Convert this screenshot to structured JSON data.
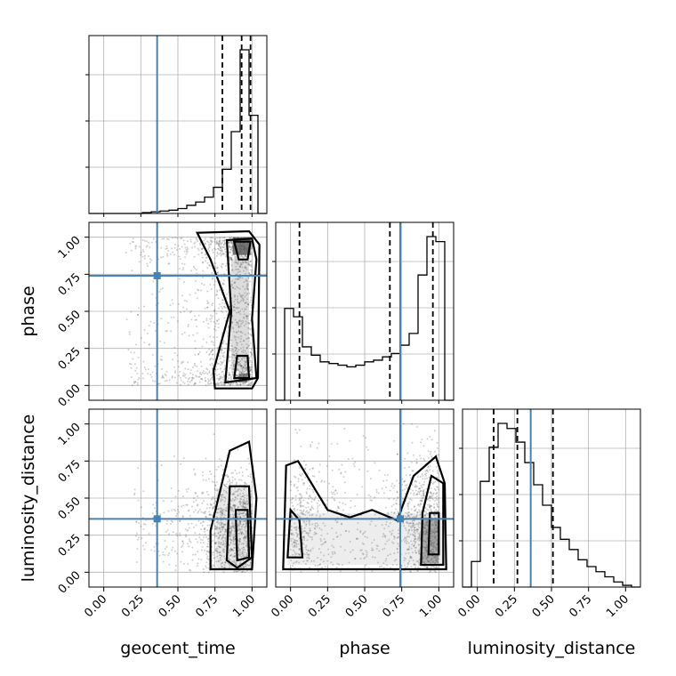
{
  "chart_data": {
    "type": "corner",
    "parameters": [
      "geocent_time",
      "phase",
      "luminosity_distance"
    ],
    "axis_range": [
      -0.1,
      1.1
    ],
    "tick_labels": [
      "0.00",
      "0.25",
      "0.50",
      "0.75",
      "1.00"
    ],
    "tick_values": [
      0,
      0.25,
      0.5,
      0.75,
      1.0
    ],
    "grid": true,
    "truths": {
      "geocent_time": 0.36,
      "phase": 0.74,
      "luminosity_distance": 0.36
    },
    "truth_color": "#4682b4",
    "quantiles": {
      "geocent_time": [
        0.8,
        0.93,
        0.99
      ],
      "phase": [
        0.06,
        0.67,
        0.96
      ],
      "luminosity_distance": [
        0.11,
        0.27,
        0.51
      ]
    },
    "histograms": {
      "geocent_time": {
        "bin_edges": [
          -0.1,
          -0.04,
          0.02,
          0.08,
          0.14,
          0.2,
          0.26,
          0.32,
          0.38,
          0.44,
          0.5,
          0.56,
          0.62,
          0.68,
          0.74,
          0.8,
          0.86,
          0.92,
          0.98,
          1.04,
          1.1
        ],
        "counts": [
          0,
          0,
          0,
          0,
          0,
          0,
          0.005,
          0.01,
          0.015,
          0.02,
          0.03,
          0.05,
          0.07,
          0.1,
          0.16,
          0.27,
          0.5,
          1.0,
          0.6,
          0
        ]
      },
      "phase": {
        "bin_edges": [
          -0.1,
          -0.04,
          0.02,
          0.08,
          0.14,
          0.2,
          0.26,
          0.32,
          0.38,
          0.44,
          0.5,
          0.56,
          0.62,
          0.68,
          0.74,
          0.8,
          0.86,
          0.92,
          0.98,
          1.04,
          1.1
        ],
        "counts": [
          0,
          0.55,
          0.5,
          0.32,
          0.27,
          0.23,
          0.22,
          0.21,
          0.2,
          0.21,
          0.23,
          0.24,
          0.26,
          0.28,
          0.33,
          0.4,
          0.75,
          0.98,
          0.95,
          0
        ]
      },
      "luminosity_distance": {
        "bin_edges": [
          -0.1,
          -0.04,
          0.02,
          0.08,
          0.14,
          0.2,
          0.26,
          0.32,
          0.38,
          0.44,
          0.5,
          0.56,
          0.62,
          0.68,
          0.74,
          0.8,
          0.86,
          0.92,
          0.98,
          1.04,
          1.1
        ],
        "counts": [
          0,
          0.15,
          0.62,
          0.82,
          0.96,
          0.93,
          0.85,
          0.73,
          0.6,
          0.48,
          0.35,
          0.28,
          0.22,
          0.16,
          0.12,
          0.09,
          0.06,
          0.03,
          0.01,
          0
        ]
      }
    },
    "panels_2d": [
      {
        "x": "geocent_time",
        "y": "phase"
      },
      {
        "x": "geocent_time",
        "y": "luminosity_distance"
      },
      {
        "x": "phase",
        "y": "luminosity_distance"
      }
    ]
  }
}
